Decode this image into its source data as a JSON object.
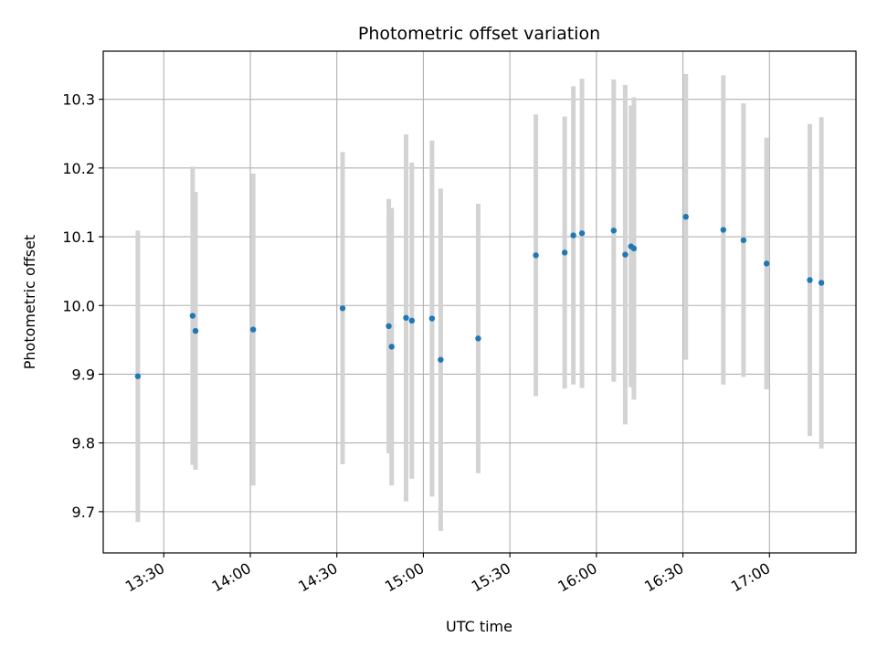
{
  "chart_data": {
    "type": "scatter",
    "title": "Photometric offset variation",
    "xlabel": "UTC time",
    "ylabel": "Photometric offset",
    "x_axis_type": "time",
    "xlim": [
      "13:09",
      "17:30"
    ],
    "ylim": [
      9.64,
      10.37
    ],
    "x_ticks": [
      "13:30",
      "14:00",
      "14:30",
      "15:00",
      "15:30",
      "16:00",
      "16:30",
      "17:00"
    ],
    "y_ticks": [
      9.7,
      9.8,
      9.9,
      10.0,
      10.1,
      10.2,
      10.3
    ],
    "y_tick_labels": [
      "9.7",
      "9.8",
      "9.9",
      "10.0",
      "10.1",
      "10.2",
      "10.3"
    ],
    "grid": true,
    "point_color": "#1f77b4",
    "errorbar_color": "#d3d3d3",
    "points": [
      {
        "x": "13:21",
        "y": 9.897,
        "err": 0.212
      },
      {
        "x": "13:40",
        "y": 9.985,
        "err": 0.217
      },
      {
        "x": "13:41",
        "y": 9.963,
        "err": 0.202
      },
      {
        "x": "14:01",
        "y": 9.965,
        "err": 0.227
      },
      {
        "x": "14:32",
        "y": 9.996,
        "err": 0.227
      },
      {
        "x": "14:48",
        "y": 9.97,
        "err": 0.185
      },
      {
        "x": "14:49",
        "y": 9.94,
        "err": 0.202
      },
      {
        "x": "14:54",
        "y": 9.982,
        "err": 0.267
      },
      {
        "x": "14:56",
        "y": 9.978,
        "err": 0.23
      },
      {
        "x": "15:03",
        "y": 9.981,
        "err": 0.259
      },
      {
        "x": "15:06",
        "y": 9.921,
        "err": 0.249
      },
      {
        "x": "15:19",
        "y": 9.952,
        "err": 0.196
      },
      {
        "x": "15:39",
        "y": 10.073,
        "err": 0.205
      },
      {
        "x": "15:49",
        "y": 10.077,
        "err": 0.198
      },
      {
        "x": "15:52",
        "y": 10.102,
        "err": 0.217
      },
      {
        "x": "15:55",
        "y": 10.105,
        "err": 0.225
      },
      {
        "x": "16:06",
        "y": 10.109,
        "err": 0.22
      },
      {
        "x": "16:10",
        "y": 10.074,
        "err": 0.247
      },
      {
        "x": "16:12",
        "y": 10.086,
        "err": 0.205
      },
      {
        "x": "16:13",
        "y": 10.083,
        "err": 0.22
      },
      {
        "x": "16:31",
        "y": 10.129,
        "err": 0.208
      },
      {
        "x": "16:44",
        "y": 10.11,
        "err": 0.225
      },
      {
        "x": "16:51",
        "y": 10.095,
        "err": 0.199
      },
      {
        "x": "16:59",
        "y": 10.061,
        "err": 0.183
      },
      {
        "x": "17:14",
        "y": 10.037,
        "err": 0.227
      },
      {
        "x": "17:18",
        "y": 10.033,
        "err": 0.241
      }
    ]
  }
}
